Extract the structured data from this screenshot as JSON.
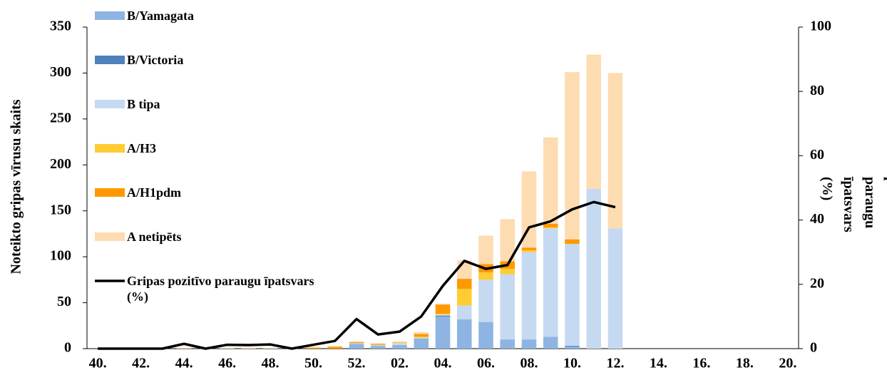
{
  "chart_data": {
    "type": "bar",
    "categories": [
      "40.",
      null,
      "42.",
      null,
      "44.",
      null,
      "46.",
      null,
      "48.",
      null,
      "50.",
      null,
      "52.",
      null,
      "02.",
      null,
      "04.",
      null,
      "06.",
      null,
      "08.",
      null,
      "10.",
      null,
      "12.",
      null,
      "14.",
      null,
      "16.",
      null,
      "18.",
      null,
      "20."
    ],
    "series": [
      {
        "name": "B/Yamagata",
        "color": "#8db4e2",
        "values": [
          0,
          0,
          0,
          0,
          0,
          0,
          0,
          0,
          0,
          0,
          0,
          0,
          5,
          3,
          4,
          11,
          35,
          32,
          29,
          10,
          10,
          13,
          2,
          0,
          0,
          null,
          null,
          null,
          null,
          null,
          null,
          null,
          null
        ]
      },
      {
        "name": "B/Victoria",
        "color": "#4f81bd",
        "values": [
          0,
          0,
          0,
          0,
          0,
          0,
          0,
          0,
          0,
          0,
          0,
          0,
          0,
          0,
          0,
          0,
          1,
          0,
          0,
          0,
          0,
          0,
          1,
          0,
          0,
          null,
          null,
          null,
          null,
          null,
          null,
          null,
          null
        ]
      },
      {
        "name": "B tipa",
        "color": "#c5d9f1",
        "values": [
          0,
          0,
          0,
          0,
          0,
          0,
          0,
          0,
          0,
          0,
          0,
          0,
          1,
          1,
          2,
          1,
          1,
          15,
          46,
          71,
          95,
          118,
          111,
          174,
          131,
          null,
          null,
          null,
          null,
          null,
          null,
          null,
          null
        ]
      },
      {
        "name": "A/H3",
        "color": "#ffcc33",
        "values": [
          0,
          0,
          0,
          0,
          0,
          0,
          0,
          0,
          0,
          0,
          0,
          0,
          0,
          0,
          1,
          1,
          1,
          18,
          8,
          6,
          2,
          1,
          0,
          0,
          0,
          null,
          null,
          null,
          null,
          null,
          null,
          null,
          null
        ]
      },
      {
        "name": "A/H1pdm",
        "color": "#ff9900",
        "values": [
          0,
          0,
          0,
          0,
          0,
          0,
          0,
          0,
          0,
          0,
          1,
          2,
          1,
          1,
          0,
          3,
          10,
          11,
          9,
          8,
          3,
          4,
          5,
          0,
          0,
          null,
          null,
          null,
          null,
          null,
          null,
          null,
          null
        ]
      },
      {
        "name": "A netipēts",
        "color": "#fddcb2",
        "values": [
          0,
          0,
          0,
          0,
          1,
          0,
          1,
          1,
          1,
          0,
          1,
          1,
          1,
          1,
          1,
          2,
          1,
          20,
          31,
          46,
          83,
          94,
          182,
          146,
          169,
          null,
          null,
          null,
          null,
          null,
          null,
          null,
          null
        ]
      },
      {
        "name": "Gripas pozitīvo paraugu īpatsvars (%)",
        "color": "#000000",
        "type": "line",
        "axis": "y2",
        "values": [
          0,
          0,
          0,
          0,
          1.5,
          0,
          1.2,
          1.1,
          1.3,
          0,
          1.2,
          2.4,
          9.2,
          4.4,
          5.3,
          10,
          19.5,
          27.3,
          24.8,
          26,
          37.7,
          39.6,
          43.3,
          45.6,
          44,
          null,
          null,
          null,
          null,
          null,
          null,
          null,
          null
        ]
      }
    ],
    "stacked": true,
    "y_label": "Noteikto gripas vīrusu skaits",
    "y2_label": "Gripas pozitīvo paraugu īpatsvars (%)",
    "ylim": [
      0,
      350
    ],
    "yticks": [
      0,
      50,
      100,
      150,
      200,
      250,
      300,
      350
    ],
    "y2lim": [
      0,
      100
    ],
    "y2ticks": [
      0,
      20,
      40,
      60,
      80,
      100
    ],
    "grid": false,
    "legend": "upper left"
  }
}
